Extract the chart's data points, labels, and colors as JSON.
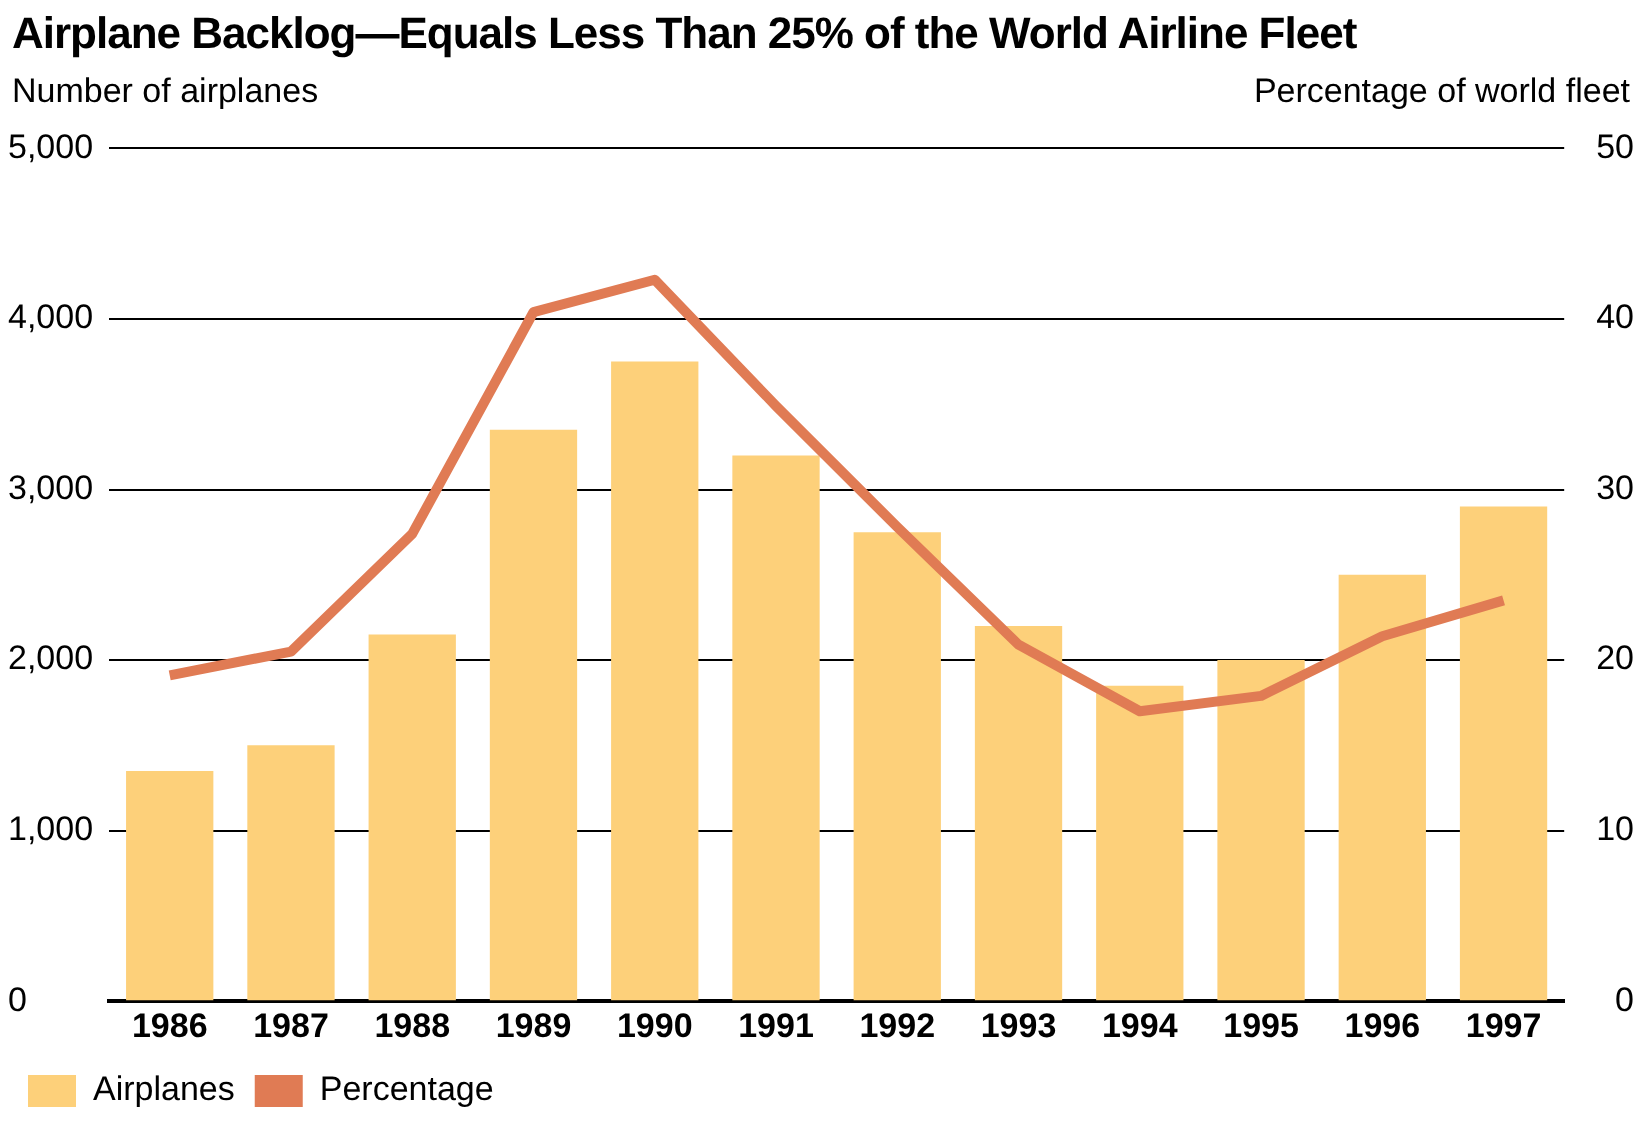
{
  "chart_data": {
    "type": "bar",
    "title": "Airplane Backlog—Equals Less Than 25% of the World Airline Fleet",
    "ylabel": "Number of airplanes",
    "y2label": "Percentage of world fleet",
    "categories": [
      "1986",
      "1987",
      "1988",
      "1989",
      "1990",
      "1991",
      "1992",
      "1993",
      "1994",
      "1995",
      "1996",
      "1997"
    ],
    "series": [
      {
        "name": "Airplanes",
        "color": "#fdd07a",
        "values": [
          1350,
          1500,
          2150,
          3350,
          3750,
          3200,
          2750,
          2200,
          1850,
          2000,
          2500,
          2900
        ]
      },
      {
        "name": "Percentage",
        "type": "line",
        "axis": "y2",
        "color": "#e07b54",
        "values": [
          19.1,
          20.5,
          27.4,
          40.4,
          42.3,
          34.9,
          27.8,
          20.9,
          17.0,
          17.9,
          21.4,
          23.5
        ]
      }
    ],
    "ylim": [
      0,
      5000
    ],
    "yticks": [
      0,
      {
        "value": 1000,
        "label": "1,000"
      },
      {
        "value": 2000,
        "label": "2,000"
      },
      {
        "value": 3000,
        "label": "3,000"
      },
      {
        "value": 4000,
        "label": "4,000"
      },
      {
        "value": 5000,
        "label": "5,000"
      }
    ],
    "y2lim": [
      0,
      50
    ],
    "y2ticks": [
      0,
      10,
      20,
      30,
      40,
      50
    ],
    "grid": "y",
    "legend": "bottom left",
    "marker": "none",
    "line_style": "solid"
  }
}
